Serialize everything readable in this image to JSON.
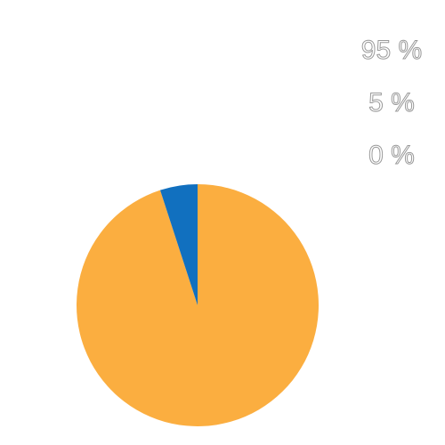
{
  "chart_data": {
    "type": "pie",
    "categories": [
      null,
      null,
      null
    ],
    "values": [
      95,
      5,
      0
    ],
    "value_labels": [
      "95 %",
      "5 %",
      "0 %"
    ],
    "colors": [
      "#fbae40",
      "#1170bf"
    ]
  }
}
